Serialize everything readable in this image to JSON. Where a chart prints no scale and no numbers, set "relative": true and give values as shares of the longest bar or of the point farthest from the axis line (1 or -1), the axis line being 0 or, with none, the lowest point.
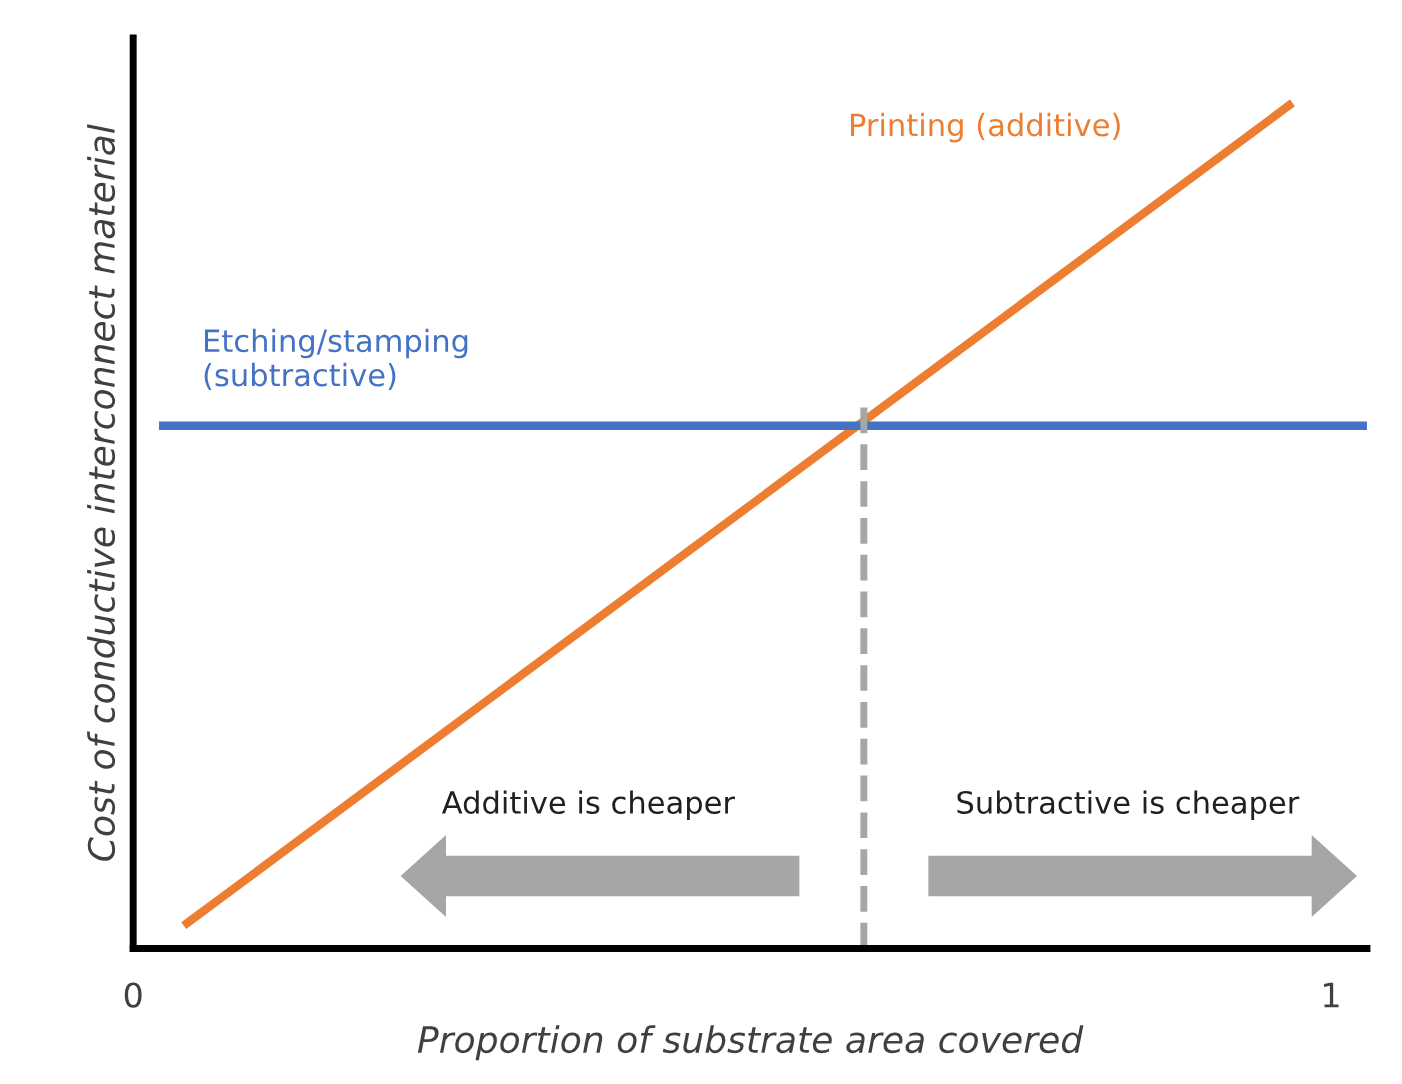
{
  "chart_data": {
    "type": "line",
    "relative": true,
    "xlabel": "Proportion of substrate area covered",
    "ylabel": "Cost of conductive interconnect material",
    "xlim": [
      0,
      1.03
    ],
    "xticks": [
      0,
      1
    ],
    "legend": false,
    "grid": false,
    "marker": "none",
    "line_style": "solid",
    "series": [
      {
        "name": "Printing (additive)",
        "color": "#ed7d31",
        "x": [
          0.045,
          0.965
        ],
        "values": [
          0.03,
          1
        ]
      },
      {
        "name": "Etching/stamping\n(subtractive)",
        "color": "#4472c4",
        "x": [
          0.025,
          1.03
        ],
        "values": [
          0.62,
          0.62
        ]
      }
    ],
    "ref_lines": [
      {
        "axis": "x",
        "value": 0.61,
        "color": "#a6a6a6",
        "line_style": "dashed"
      }
    ],
    "annotations": [
      "Additive is cheaper",
      "Subtractive is cheaper"
    ]
  }
}
